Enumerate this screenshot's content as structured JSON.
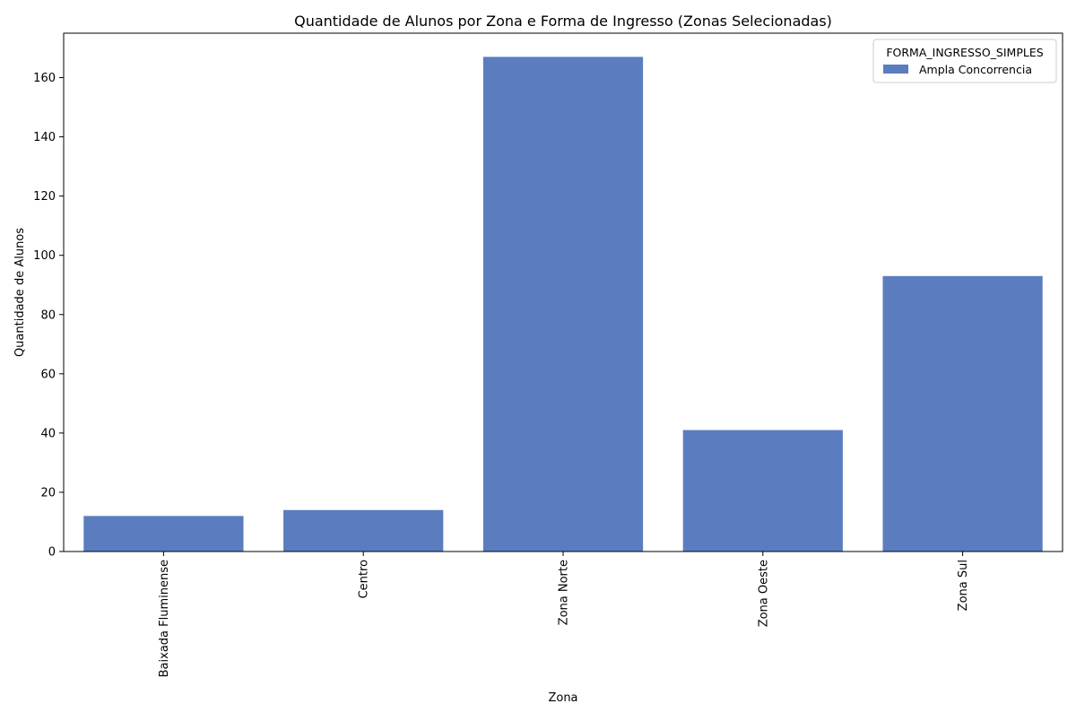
{
  "chart_data": {
    "type": "bar",
    "title": "Quantidade de Alunos por Zona e Forma de Ingresso (Zonas Selecionadas)",
    "xlabel": "Zona",
    "ylabel": "Quantidade de Alunos",
    "categories": [
      "Baixada Fluminense",
      "Centro",
      "Zona Norte",
      "Zona Oeste",
      "Zona Sul"
    ],
    "series": [
      {
        "name": "Ampla Concorrencia",
        "values": [
          12,
          14,
          167,
          41,
          93
        ],
        "color": "#5b7dc0"
      }
    ],
    "ylim": [
      0,
      175
    ],
    "yticks": [
      0,
      20,
      40,
      60,
      80,
      100,
      120,
      140,
      160
    ],
    "grid": false,
    "legend": {
      "title": "FORMA_INGRESSO_SIMPLES",
      "position": "top-right"
    }
  }
}
